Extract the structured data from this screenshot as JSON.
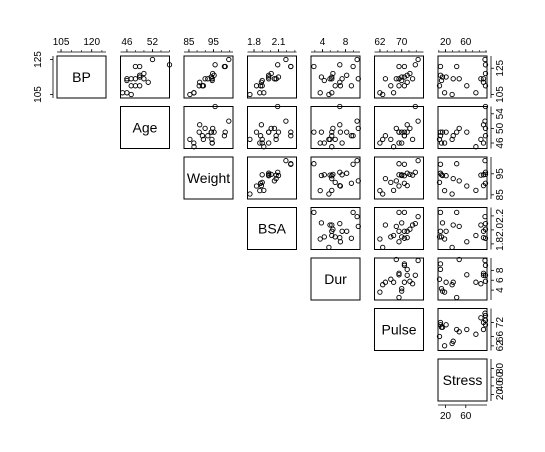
{
  "chart_data": {
    "type": "scatter",
    "layout": "upper-triangle pairs matrix",
    "variables": [
      {
        "name": "BP",
        "range": [
          103,
          127
        ],
        "ticks": [
          105,
          120
        ],
        "axis_label_side": "top",
        "left_ticks": [
          105,
          125
        ],
        "left_tick_labels": [
          "105",
          "125"
        ]
      },
      {
        "name": "Age",
        "range": [
          44.5,
          56
        ],
        "ticks": [
          46,
          52
        ],
        "right_ticks": [
          46,
          50,
          54
        ],
        "right_tick_labels": [
          "46",
          "50",
          "54"
        ]
      },
      {
        "name": "Weight",
        "range": [
          83,
          103
        ],
        "ticks": [
          85,
          95
        ],
        "right_ticks": [
          85,
          95
        ],
        "right_tick_labels": [
          "85",
          "95"
        ]
      },
      {
        "name": "BSA",
        "range": [
          1.72,
          2.32
        ],
        "ticks": [
          1.8,
          2.1
        ],
        "right_ticks": [
          1.8,
          2.0,
          2.2
        ],
        "right_tick_labels": [
          "1.8",
          "2.0",
          "2.2"
        ]
      },
      {
        "name": "Dur",
        "range": [
          2,
          10.5
        ],
        "ticks": [
          4,
          8
        ],
        "right_ticks": [
          4,
          6,
          8
        ],
        "right_tick_labels": [
          "4",
          "6",
          "8"
        ]
      },
      {
        "name": "Pulse",
        "range": [
          60,
          78
        ],
        "ticks": [
          62,
          70
        ],
        "right_ticks": [
          62,
          66,
          72
        ],
        "right_tick_labels": [
          "62",
          "66",
          "72"
        ]
      },
      {
        "name": "Stress",
        "range": [
          5,
          102
        ],
        "ticks": [
          20,
          60
        ],
        "right_ticks": [
          20,
          40,
          60,
          80
        ],
        "right_tick_labels": [
          "20",
          "40",
          "60",
          "80"
        ]
      }
    ],
    "top_tick_labels": [
      [
        "105",
        "120"
      ],
      [
        "46",
        "52"
      ],
      [
        "85",
        "95"
      ],
      [
        "1.8",
        "2.1"
      ],
      [
        "4",
        "8"
      ],
      [
        "62",
        "70"
      ],
      [
        "20",
        "60"
      ]
    ],
    "bottom_tick_labels": [
      "20",
      "60"
    ],
    "observations": {
      "BP": [
        105,
        115,
        116,
        117,
        112,
        121,
        121,
        110,
        110,
        114,
        114,
        115,
        114,
        106,
        125,
        114,
        106,
        113,
        110,
        122
      ],
      "Age": [
        47,
        49,
        49,
        50,
        51,
        48,
        49,
        47,
        49,
        48,
        47,
        49,
        50,
        45,
        52,
        46,
        46,
        46,
        48,
        56
      ],
      "Weight": [
        85.4,
        94.2,
        95.3,
        94.7,
        89.4,
        99.5,
        99.8,
        90.9,
        89.2,
        92.7,
        94.4,
        94.1,
        91.6,
        87.1,
        101.3,
        94.5,
        87.0,
        94.5,
        90.5,
        95.7
      ],
      "BSA": [
        1.75,
        2.1,
        1.98,
        2.01,
        1.89,
        2.25,
        2.25,
        1.9,
        1.83,
        2.07,
        2.07,
        1.98,
        2.05,
        1.92,
        2.19,
        1.98,
        1.87,
        1.9,
        1.88,
        2.09
      ],
      "Dur": [
        5.1,
        3.8,
        8.2,
        5.8,
        7.0,
        9.3,
        2.5,
        6.2,
        7.1,
        5.6,
        5.3,
        5.6,
        10.2,
        5.6,
        10.0,
        7.4,
        3.6,
        4.3,
        9.0,
        7.0
      ],
      "Pulse": [
        63,
        70,
        72,
        73,
        72,
        71,
        69,
        66,
        69,
        64,
        74,
        71,
        68,
        67,
        76,
        69,
        62,
        70,
        71,
        75
      ],
      "Stress": [
        33,
        14,
        10,
        99,
        95,
        10,
        42,
        8,
        62,
        35,
        90,
        21,
        47,
        80,
        98,
        95,
        18,
        12,
        99,
        99
      ]
    }
  }
}
